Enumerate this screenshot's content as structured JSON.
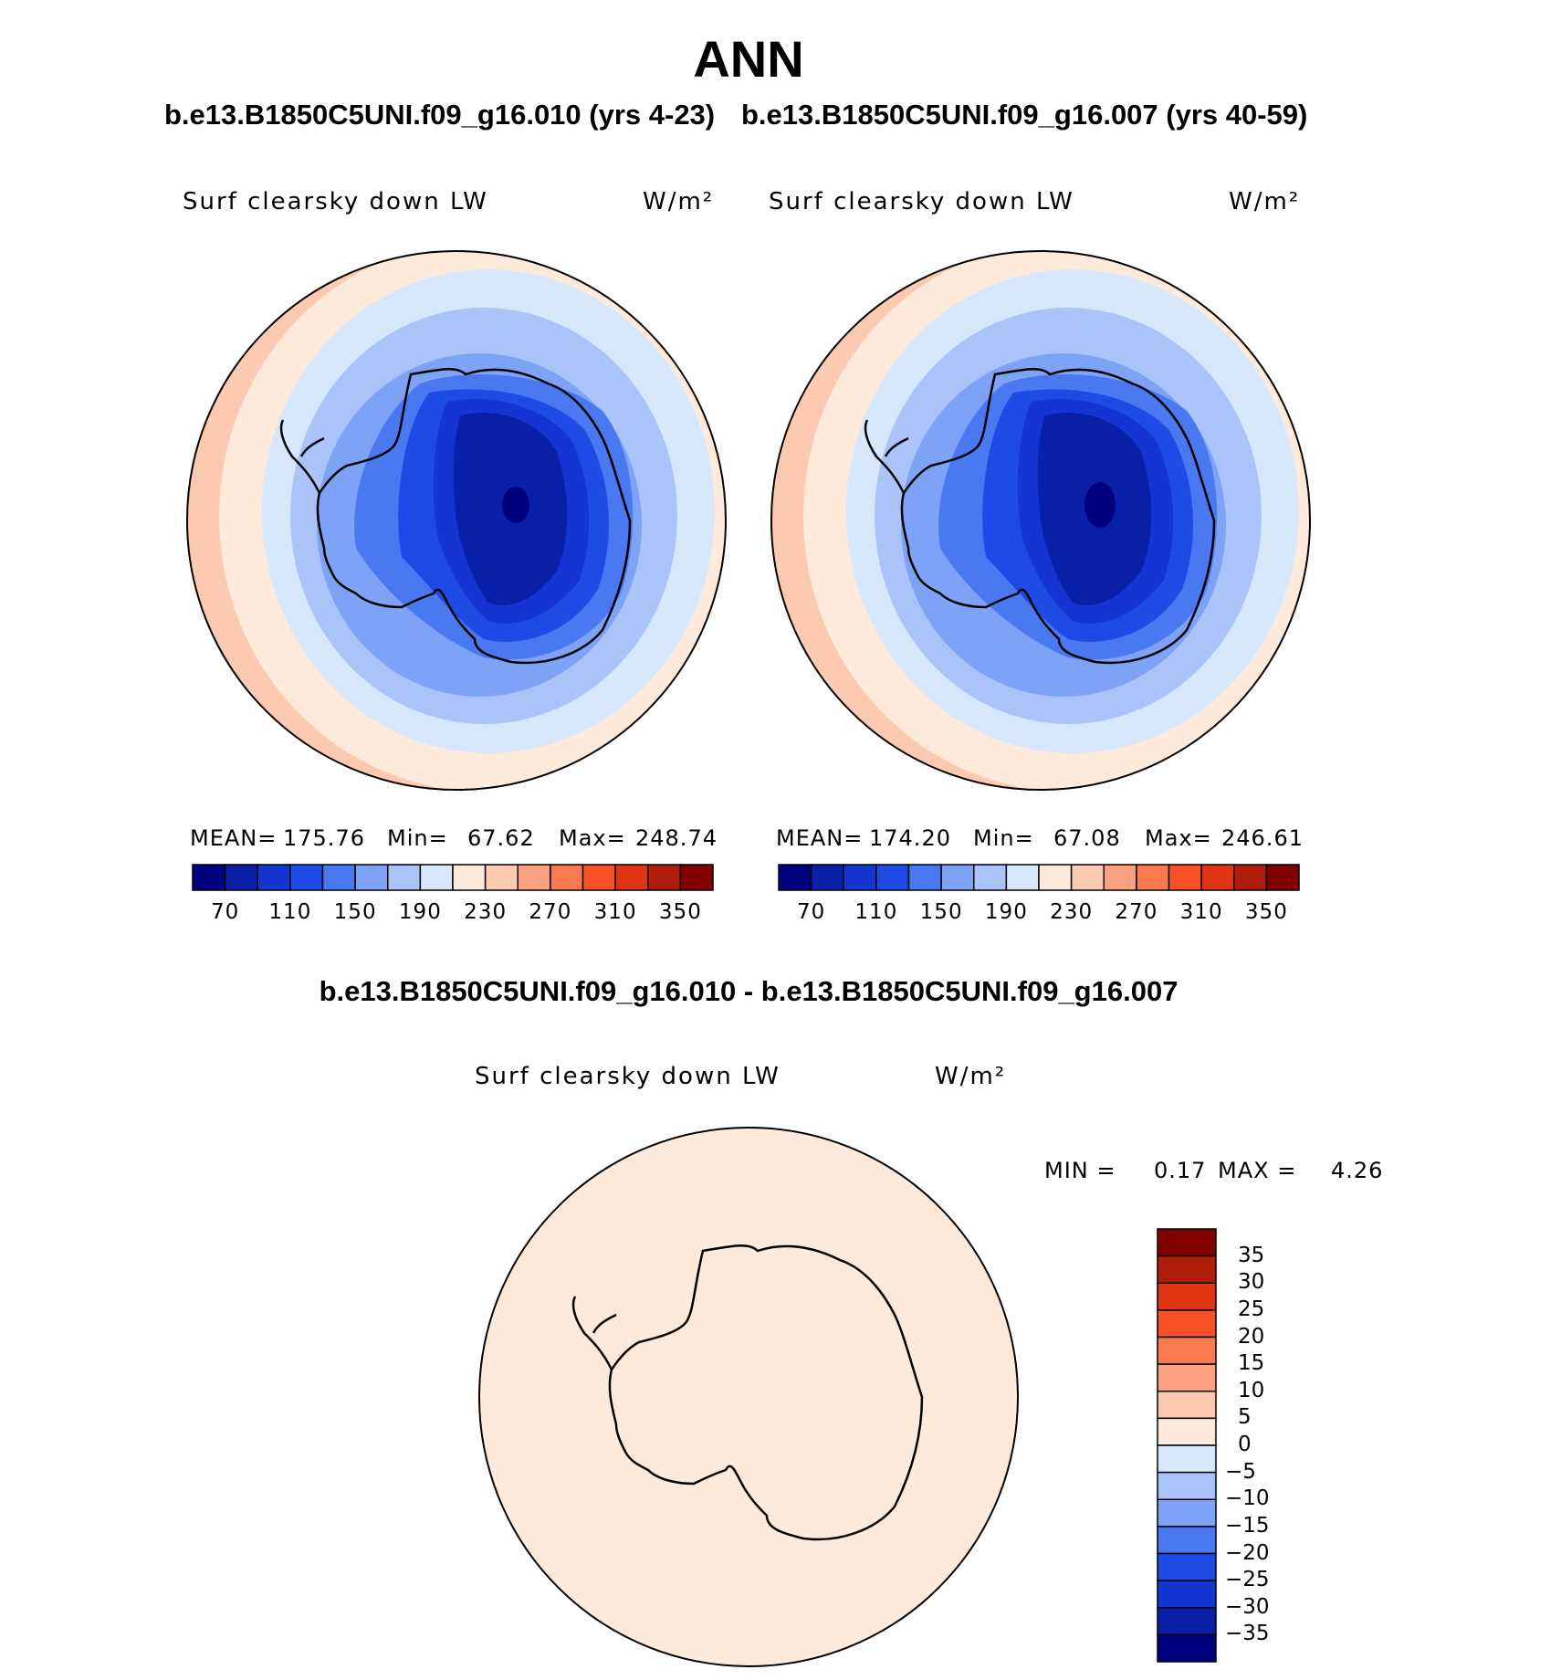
{
  "page": {
    "title": "ANN",
    "subtitle_left": "b.e13.B1850C5UNI.f09_g16.010 (yrs 4-23)",
    "subtitle_right": "b.e13.B1850C5UNI.f09_g16.007 (yrs 40-59)",
    "diff_title": "b.e13.B1850C5UNI.f09_g16.010 - b.e13.B1850C5UNI.f09_g16.007"
  },
  "panels": [
    {
      "variable": "Surf clearsky down LW",
      "units": "W/m²",
      "mean_label": "MEAN=",
      "mean": "175.76",
      "min_label": "Min=",
      "min": "67.62",
      "max_label": "Max=",
      "max": "248.74"
    },
    {
      "variable": "Surf clearsky down LW",
      "units": "W/m²",
      "mean_label": "MEAN=",
      "mean": "174.20",
      "min_label": "Min=",
      "min": "67.08",
      "max_label": "Max=",
      "max": "246.61"
    }
  ],
  "diff_panel": {
    "variable": "Surf clearsky down LW",
    "units": "W/m²",
    "min_label": "MIN =",
    "min": "0.17",
    "max_label": "MAX =",
    "max": "4.26"
  },
  "colorbar": {
    "colors": [
      "#00007f",
      "#0a1fa8",
      "#1435d2",
      "#1e4ae6",
      "#4a78f0",
      "#7ea2f6",
      "#aac4fa",
      "#d7e8fc",
      "#fdeadb",
      "#fccab0",
      "#fca17f",
      "#fa7a50",
      "#fa5027",
      "#e03412",
      "#b01c0a",
      "#800000"
    ],
    "ticks": [
      "70",
      "110",
      "150",
      "190",
      "230",
      "270",
      "310",
      "350"
    ]
  },
  "diff_colorbar": {
    "colors_top_to_bottom": [
      "#800000",
      "#b01c0a",
      "#e03412",
      "#fa5027",
      "#fa7a50",
      "#fca17f",
      "#fccab0",
      "#fdeadb",
      "#d7e8fc",
      "#aac4fa",
      "#7ea2f6",
      "#4a78f0",
      "#1e4ae6",
      "#1435d2",
      "#0a1fa8",
      "#00007f"
    ],
    "ticks": [
      "35",
      "30",
      "25",
      "20",
      "15",
      "10",
      "5",
      "0",
      "−5",
      "−10",
      "−15",
      "−20",
      "−25",
      "−30",
      "−35"
    ]
  },
  "chart_data": [
    {
      "type": "heatmap",
      "title": "Surf clearsky down LW",
      "units": "W/m²",
      "projection": "south polar stereographic",
      "contour_levels": [
        70,
        90,
        110,
        130,
        150,
        170,
        190,
        210,
        230,
        250,
        270,
        290,
        310,
        330,
        350
      ],
      "mean": 175.76,
      "min": 67.62,
      "max": 248.74
    },
    {
      "type": "heatmap",
      "title": "Surf clearsky down LW",
      "units": "W/m²",
      "projection": "south polar stereographic",
      "contour_levels": [
        70,
        90,
        110,
        130,
        150,
        170,
        190,
        210,
        230,
        250,
        270,
        290,
        310,
        330,
        350
      ],
      "mean": 174.2,
      "min": 67.08,
      "max": 246.61
    },
    {
      "type": "heatmap",
      "title": "Surf clearsky down LW",
      "units": "W/m²",
      "projection": "south polar stereographic",
      "contour_levels": [
        -35,
        -30,
        -25,
        -20,
        -15,
        -10,
        -5,
        0,
        5,
        10,
        15,
        20,
        25,
        30,
        35
      ],
      "min": 0.17,
      "max": 4.26
    }
  ]
}
